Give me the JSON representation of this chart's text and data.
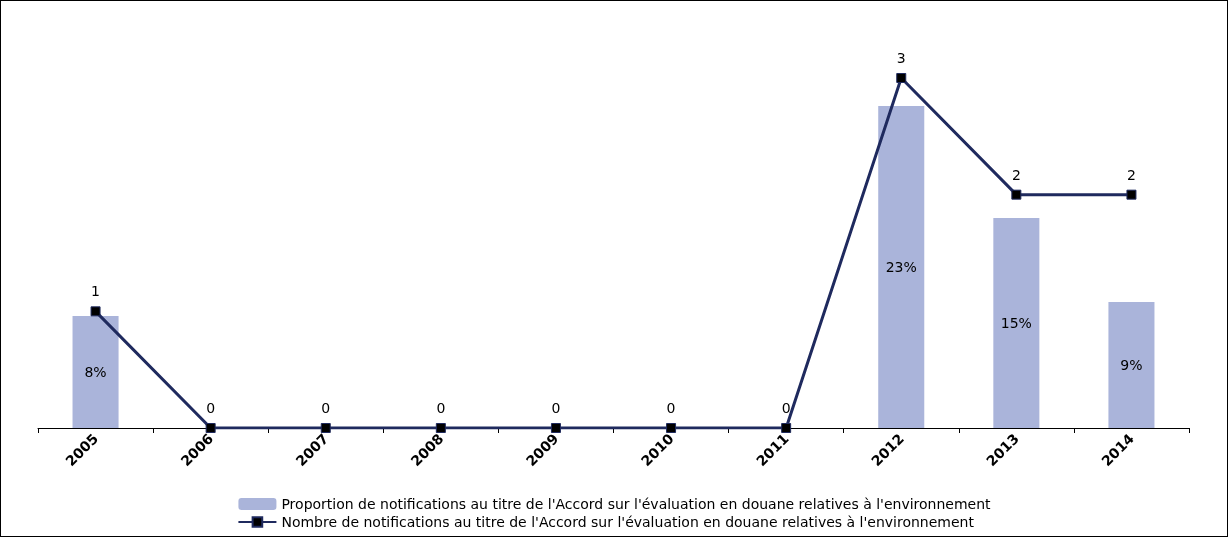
{
  "chart_data": {
    "type": "bar",
    "categories": [
      "2005",
      "2006",
      "2007",
      "2008",
      "2009",
      "2010",
      "2011",
      "2012",
      "2013",
      "2014"
    ],
    "series": [
      {
        "name": "Proportion de notifications au titre de l'Accord sur l'évaluation en douane relatives à l'environnement",
        "axis": "y2",
        "color": "#aab4da",
        "values": [
          8,
          null,
          null,
          null,
          null,
          null,
          null,
          23,
          15,
          9
        ],
        "value_labels": [
          "8%",
          null,
          null,
          null,
          null,
          null,
          null,
          "23%",
          "15%",
          "9%"
        ]
      },
      {
        "name": "Nombre de notifications au titre de l'Accord sur l'évaluation en douane relatives à l'environnement",
        "type": "line",
        "color": "#1f2a5e",
        "marker": "square",
        "values": [
          1,
          0,
          0,
          0,
          0,
          0,
          0,
          3,
          2,
          2
        ]
      }
    ],
    "data_labels": true,
    "tick_labels": "x",
    "legend": "bottom",
    "grid": false,
    "line_style": "solid"
  }
}
